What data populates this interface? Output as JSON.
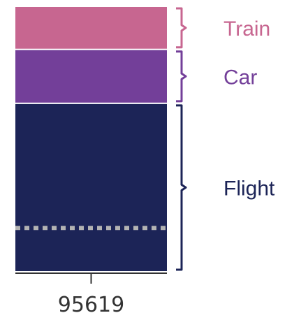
{
  "chart_data": {
    "type": "bar",
    "stacked": true,
    "categories": [
      "95619"
    ],
    "series": [
      {
        "name": "Flight",
        "values": [
          62
        ],
        "color": "#1c2457"
      },
      {
        "name": "Car",
        "values": [
          20
        ],
        "color": "#733f99"
      },
      {
        "name": "Train",
        "values": [
          16
        ],
        "color": "#c76690"
      }
    ],
    "reference_line": {
      "value": 16,
      "style": "dotted",
      "color": "#b3b3b3"
    },
    "ylim": [
      0,
      98
    ],
    "labels_style": "brackets-right",
    "grid": false
  }
}
